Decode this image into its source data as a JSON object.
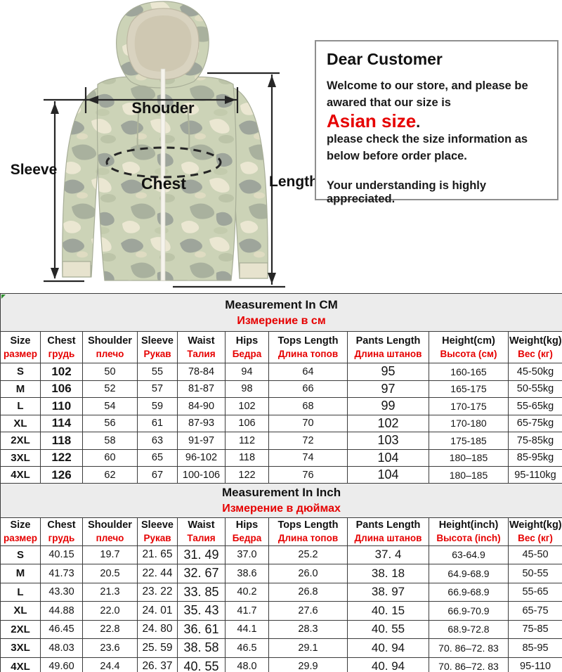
{
  "diagram": {
    "shoulder_label": "Shouder",
    "sleeve_label": "Sleeve",
    "chest_label": "Chest",
    "length_label": "Length"
  },
  "notice": {
    "title": "Dear Customer",
    "body_line1": "Welcome to our store, and please be awared that our size is",
    "highlight": "Asian size",
    "highlight_period": ".",
    "body_line2": "please check the size information as below before order place.",
    "footer": "Your understanding is highly appreciated."
  },
  "colors": {
    "accent_red": "#e60000",
    "table_title_band": "#ececec",
    "table_border": "#3c3c3c",
    "corner_marker_green": "#2f8f2f",
    "camo_base": "#ccd3b7",
    "camo_gray": "#9ea59b",
    "camo_cream": "#ebe7d2"
  },
  "tables": [
    {
      "id": "cm",
      "title_en": "Measurement In CM",
      "title_ru": "Измерение в см",
      "columns": [
        {
          "en": "Size",
          "ru": "размер"
        },
        {
          "en": "Chest",
          "ru": "грудь"
        },
        {
          "en": "Shoulder",
          "ru": "плечо"
        },
        {
          "en": "Sleeve",
          "ru": "Рукав"
        },
        {
          "en": "Waist",
          "ru": "Талия"
        },
        {
          "en": "Hips",
          "ru": "Бедра"
        },
        {
          "en": "Tops Length",
          "ru": "Длина топов"
        },
        {
          "en": "Pants Length",
          "ru": "Длина штанов"
        },
        {
          "en": "Height(cm)",
          "ru": "Высота (см)"
        },
        {
          "en": "Weight(kg)",
          "ru": "Вес (кг)"
        }
      ],
      "rows": [
        [
          "S",
          "102",
          "50",
          "55",
          "78-84",
          "94",
          "64",
          "95",
          "160-165",
          "45-50kg"
        ],
        [
          "M",
          "106",
          "52",
          "57",
          "81-87",
          "98",
          "66",
          "97",
          "165-175",
          "50-55kg"
        ],
        [
          "L",
          "110",
          "54",
          "59",
          "84-90",
          "102",
          "68",
          "99",
          "170-175",
          "55-65kg"
        ],
        [
          "XL",
          "114",
          "56",
          "61",
          "87-93",
          "106",
          "70",
          "102",
          "170-180",
          "65-75kg"
        ],
        [
          "2XL",
          "118",
          "58",
          "63",
          "91-97",
          "112",
          "72",
          "103",
          "175-185",
          "75-85kg"
        ],
        [
          "3XL",
          "122",
          "60",
          "65",
          "96-102",
          "118",
          "74",
          "104",
          "180–185",
          "85-95kg"
        ],
        [
          "4XL",
          "126",
          "62",
          "67",
          "100-106",
          "122",
          "76",
          "104",
          "180–185",
          "95-110kg"
        ]
      ]
    },
    {
      "id": "inch",
      "title_en": "Measurement In Inch",
      "title_ru": "Измерение в дюймах",
      "columns": [
        {
          "en": "Size",
          "ru": "размер"
        },
        {
          "en": "Chest",
          "ru": "грудь"
        },
        {
          "en": "Shoulder",
          "ru": "плечо"
        },
        {
          "en": "Sleeve",
          "ru": "Рукав"
        },
        {
          "en": "Waist",
          "ru": "Талия"
        },
        {
          "en": "Hips",
          "ru": "Бедра"
        },
        {
          "en": "Tops Length",
          "ru": "Длина топов"
        },
        {
          "en": "Pants Length",
          "ru": "Длина штанов"
        },
        {
          "en": "Height(inch)",
          "ru": "Высота (inch)"
        },
        {
          "en": "Weight(kg)",
          "ru": "Вес (кг)"
        }
      ],
      "rows": [
        [
          "S",
          "40.15",
          "19.7",
          "21. 65",
          "31. 49",
          "37.0",
          "25.2",
          "37. 4",
          "63-64.9",
          "45-50"
        ],
        [
          "M",
          "41.73",
          "20.5",
          "22. 44",
          "32. 67",
          "38.6",
          "26.0",
          "38. 18",
          "64.9-68.9",
          "50-55"
        ],
        [
          "L",
          "43.30",
          "21.3",
          "23. 22",
          "33. 85",
          "40.2",
          "26.8",
          "38. 97",
          "66.9-68.9",
          "55-65"
        ],
        [
          "XL",
          "44.88",
          "22.0",
          "24. 01",
          "35. 43",
          "41.7",
          "27.6",
          "40. 15",
          "66.9-70.9",
          "65-75"
        ],
        [
          "2XL",
          "46.45",
          "22.8",
          "24. 80",
          "36. 61",
          "44.1",
          "28.3",
          "40. 55",
          "68.9-72.8",
          "75-85"
        ],
        [
          "3XL",
          "48.03",
          "23.6",
          "25. 59",
          "38. 58",
          "46.5",
          "29.1",
          "40. 94",
          "70. 86–72. 83",
          "85-95"
        ],
        [
          "4XL",
          "49.60",
          "24.4",
          "26. 37",
          "40. 55",
          "48.0",
          "29.9",
          "40. 94",
          "70. 86–72. 83",
          "95-110"
        ]
      ]
    }
  ]
}
